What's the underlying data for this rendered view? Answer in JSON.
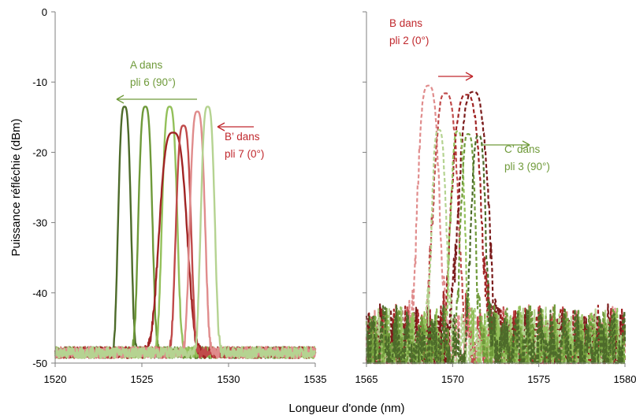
{
  "chart_data": [
    {
      "type": "line",
      "panel": "left",
      "xlabel": "",
      "ylabel": "Puissance réfléchie (dBm)",
      "xlim": [
        1520,
        1535
      ],
      "ylim": [
        -50,
        0
      ],
      "x_ticks": [
        "1520",
        "1525",
        "1530",
        "1535"
      ],
      "y_ticks": [
        "0",
        "-10",
        "-20",
        "-30",
        "-40",
        "-50"
      ],
      "grid": false,
      "line_style": "solid",
      "series": [
        {
          "color": "#4d6b2a",
          "peak_x": 1524.0,
          "peak_y": -13.5,
          "width_nm": 0.5
        },
        {
          "color": "#6f9a3a",
          "peak_x": 1525.2,
          "peak_y": -13.5,
          "width_nm": 0.55
        },
        {
          "color": "#93c05a",
          "peak_x": 1526.6,
          "peak_y": -13.5,
          "width_nm": 0.6
        },
        {
          "color": "#a02424",
          "peak_x": 1526.8,
          "peak_y": -17.2,
          "width_nm": 1.1
        },
        {
          "color": "#c04a4a",
          "peak_x": 1527.4,
          "peak_y": -16.2,
          "width_nm": 0.6
        },
        {
          "color": "#e08c8c",
          "peak_x": 1528.2,
          "peak_y": -14.2,
          "width_nm": 0.6
        },
        {
          "color": "#b5d391",
          "peak_x": 1528.8,
          "peak_y": -13.5,
          "width_nm": 0.55
        }
      ],
      "noise_floor": -48.5,
      "annotations": [
        {
          "text": [
            "A dans",
            "pli 6 (90°)"
          ],
          "color": "#6f9a3a",
          "arrow": "left"
        },
        {
          "text": [
            "B’ dans",
            "pli 7 (0°)"
          ],
          "color": "#c0282d",
          "arrow": "left"
        }
      ]
    },
    {
      "type": "line",
      "panel": "right",
      "xlabel": "",
      "ylabel": "",
      "xlim": [
        1565,
        1580
      ],
      "ylim": [
        -50,
        0
      ],
      "x_ticks": [
        "1565",
        "1570",
        "1575",
        "1580"
      ],
      "grid": false,
      "line_style": "dashed",
      "series": [
        {
          "color": "#e08c8c",
          "peak_x": 1568.6,
          "peak_y": -10.5,
          "width_nm": 0.9
        },
        {
          "color": "#c04a4a",
          "peak_x": 1569.6,
          "peak_y": -11.6,
          "width_nm": 1.0
        },
        {
          "color": "#a02424",
          "peak_x": 1570.8,
          "peak_y": -11.8,
          "width_nm": 1.2
        },
        {
          "color": "#7a1a1a",
          "peak_x": 1571.2,
          "peak_y": -11.4,
          "width_nm": 1.2
        },
        {
          "color": "#b5d391",
          "peak_x": 1569.2,
          "peak_y": -16.8,
          "width_nm": 0.6
        },
        {
          "color": "#93c05a",
          "peak_x": 1570.3,
          "peak_y": -17.0,
          "width_nm": 0.6
        },
        {
          "color": "#6f9a3a",
          "peak_x": 1570.9,
          "peak_y": -17.4,
          "width_nm": 0.6
        },
        {
          "color": "#4d6b2a",
          "peak_x": 1571.5,
          "peak_y": -17.6,
          "width_nm": 0.6
        }
      ],
      "noise_floor": -46,
      "annotations": [
        {
          "text": [
            "B dans",
            "pli 2 (0°)"
          ],
          "color": "#c0282d",
          "arrow": "right"
        },
        {
          "text": [
            "C’ dans",
            "pli 3 (90°)"
          ],
          "color": "#6f9a3a",
          "arrow": "right"
        }
      ]
    }
  ],
  "shared_xlabel": "Longueur d'onde (nm)"
}
